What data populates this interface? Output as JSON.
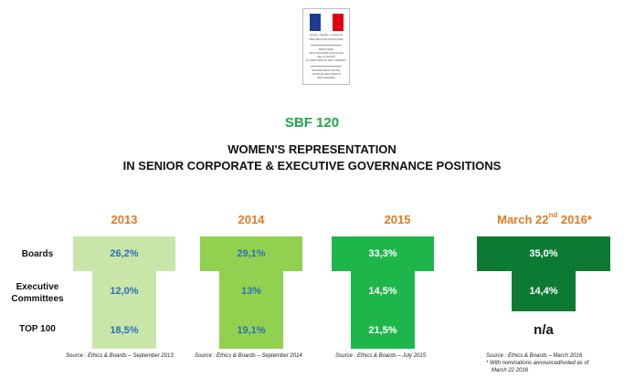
{
  "logo": {
    "lines": [
      "Liberté • Égalité • Fraternité",
      "RÉPUBLIQUE FRANÇAISE",
      "MINISTÈRE",
      "DES AFFAIRES SOCIALES",
      "DE LA SANTÉ",
      "ET DES DROITS DES FEMMES",
      "SECRÉTARIAT D'ÉTAT",
      "CHARGÉ DES DROITS",
      "DES FEMMES"
    ],
    "flag_colors": [
      "#1f3a93",
      "#ffffff",
      "#e1000f"
    ]
  },
  "header": {
    "index": "SBF 120",
    "title_line1": "WOMEN'S REPRESENTATION",
    "title_line2": "IN SENIOR CORPORATE & EXECUTIVE GOVERNANCE POSITIONS"
  },
  "chart_data": {
    "type": "table",
    "title": "WOMEN'S REPRESENTATION IN SENIOR CORPORATE & EXECUTIVE GOVERNANCE POSITIONS",
    "rows": [
      "Boards",
      "Executive Committees",
      "TOP 100"
    ],
    "row_labels_display": [
      [
        "Boards"
      ],
      [
        "Executive",
        "Committees"
      ],
      [
        "TOP 100"
      ]
    ],
    "columns": [
      {
        "year": "2013",
        "year_sup": "",
        "year_suffix": "",
        "values": [
          "26,2%",
          "12,0%",
          "18,5%"
        ],
        "color": "#c9e6a9",
        "text_color": "#2d6fb6",
        "source": [
          "Source : Ethics & Boards – September 2013"
        ]
      },
      {
        "year": "2014",
        "year_sup": "",
        "year_suffix": "",
        "values": [
          "29,1%",
          "13%",
          "19,1%"
        ],
        "color": "#92d050",
        "text_color": "#2d6fb6",
        "source": [
          "Source : Ethics & Boards – September 2014"
        ]
      },
      {
        "year": "2015",
        "year_sup": "",
        "year_suffix": "",
        "values": [
          "33,3%",
          "14,5%",
          "21,5%"
        ],
        "color": "#1eb54a",
        "text_color": "#ffffff",
        "source": [
          "Source : Ethics & Boards – July 2015"
        ]
      },
      {
        "year": "March 22",
        "year_sup": "nd",
        "year_suffix": " 2016*",
        "values": [
          "35,0%",
          "14,4%",
          "n/a"
        ],
        "color": "#0d7a34",
        "text_color": "#ffffff",
        "source": [
          "Source : Ethics & Boards –  March 2016",
          "* With nominations announced/voted as of",
          "March 22 2016"
        ]
      }
    ]
  }
}
